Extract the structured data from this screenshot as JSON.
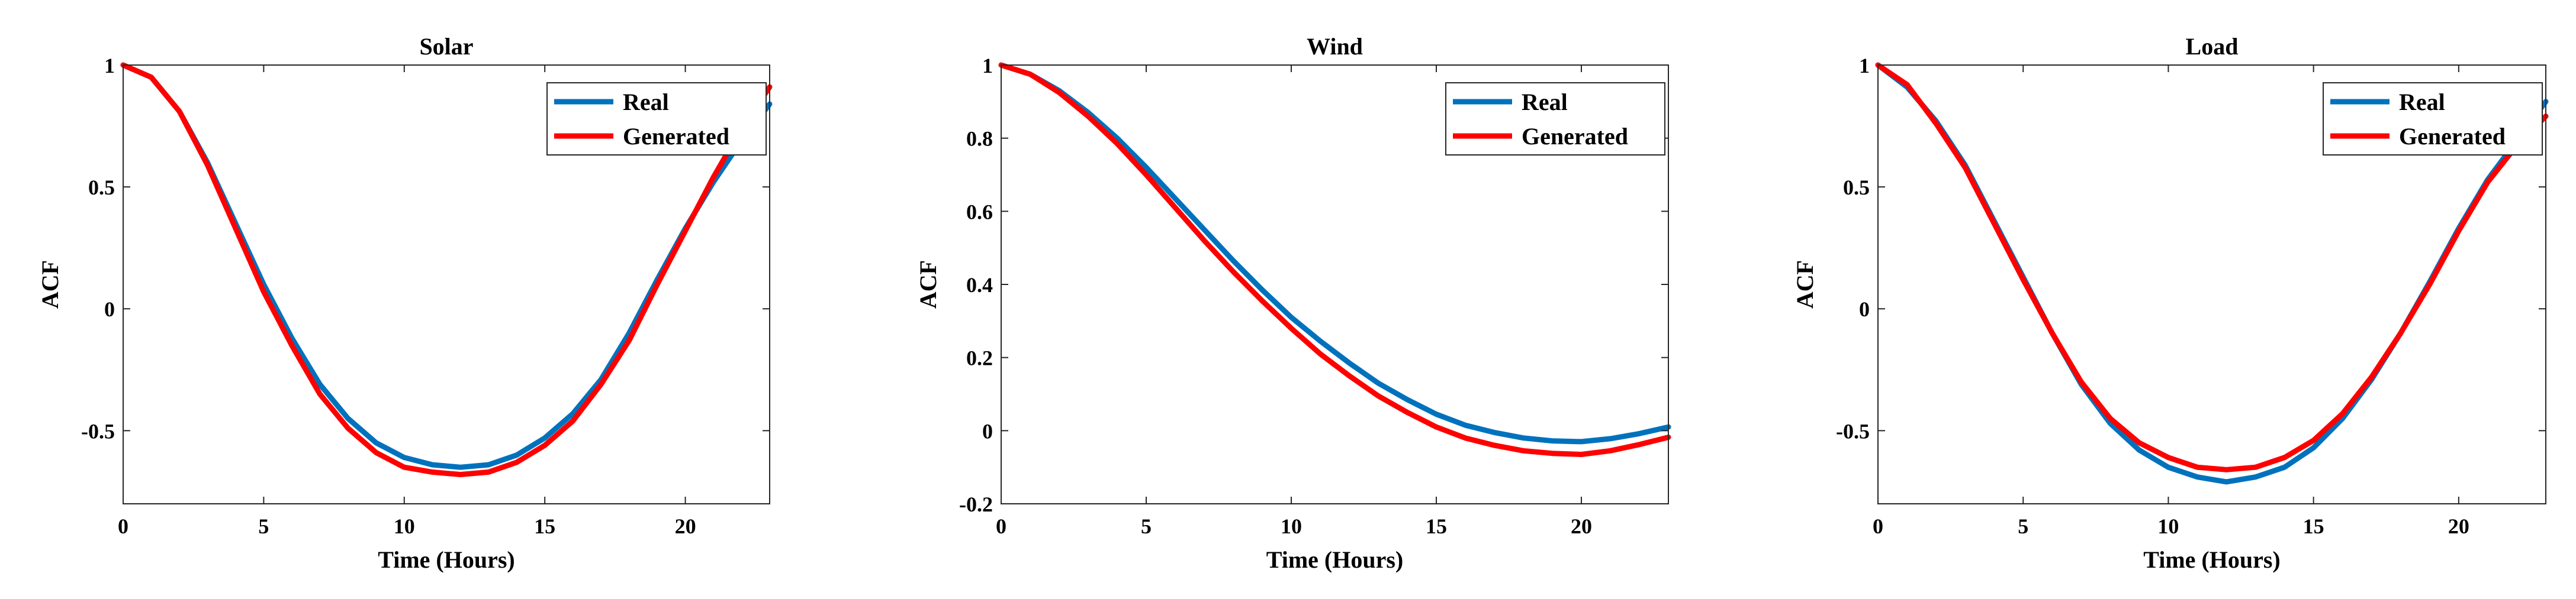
{
  "chart_data": [
    {
      "type": "line",
      "title": "Solar",
      "xlabel": "Time (Hours)",
      "ylabel": "ACF",
      "xlim": [
        0,
        23
      ],
      "ylim": [
        -0.8,
        1
      ],
      "xticks": [
        0,
        5,
        10,
        15,
        20
      ],
      "yticks": [
        -0.5,
        0,
        0.5,
        1
      ],
      "ytick_labels": [
        "-0.5",
        "0",
        "0.5",
        "1"
      ],
      "legend": "top-right",
      "x": [
        0,
        1,
        2,
        3,
        4,
        5,
        6,
        7,
        8,
        9,
        10,
        11,
        12,
        13,
        14,
        15,
        16,
        17,
        18,
        19,
        20,
        21,
        22,
        23
      ],
      "series": [
        {
          "name": "Real",
          "color": "#0072BD",
          "values": [
            1.0,
            0.95,
            0.81,
            0.6,
            0.35,
            0.1,
            -0.12,
            -0.31,
            -0.45,
            -0.55,
            -0.61,
            -0.64,
            -0.65,
            -0.64,
            -0.6,
            -0.53,
            -0.43,
            -0.29,
            -0.1,
            0.12,
            0.33,
            0.52,
            0.69,
            0.84
          ]
        },
        {
          "name": "Generated",
          "color": "#FF0000",
          "values": [
            1.0,
            0.95,
            0.81,
            0.59,
            0.33,
            0.07,
            -0.15,
            -0.35,
            -0.49,
            -0.59,
            -0.65,
            -0.67,
            -0.68,
            -0.67,
            -0.63,
            -0.56,
            -0.46,
            -0.31,
            -0.13,
            0.1,
            0.32,
            0.54,
            0.74,
            0.91
          ]
        }
      ]
    },
    {
      "type": "line",
      "title": "Wind",
      "xlabel": "Time (Hours)",
      "ylabel": "ACF",
      "xlim": [
        0,
        23
      ],
      "ylim": [
        -0.2,
        1
      ],
      "xticks": [
        0,
        5,
        10,
        15,
        20
      ],
      "yticks": [
        -0.2,
        0,
        0.2,
        0.4,
        0.6,
        0.8,
        1
      ],
      "ytick_labels": [
        "-0.2",
        "0",
        "0.2",
        "0.4",
        "0.6",
        "0.8",
        "1"
      ],
      "legend": "top-right",
      "x": [
        0,
        1,
        2,
        3,
        4,
        5,
        6,
        7,
        8,
        9,
        10,
        11,
        12,
        13,
        14,
        15,
        16,
        17,
        18,
        19,
        20,
        21,
        22,
        23
      ],
      "series": [
        {
          "name": "Real",
          "color": "#0072BD",
          "values": [
            1.0,
            0.975,
            0.93,
            0.87,
            0.8,
            0.72,
            0.635,
            0.55,
            0.465,
            0.385,
            0.31,
            0.245,
            0.185,
            0.13,
            0.085,
            0.045,
            0.015,
            -0.005,
            -0.02,
            -0.028,
            -0.03,
            -0.022,
            -0.008,
            0.01
          ]
        },
        {
          "name": "Generated",
          "color": "#FF0000",
          "values": [
            1.0,
            0.975,
            0.925,
            0.86,
            0.785,
            0.7,
            0.61,
            0.52,
            0.435,
            0.355,
            0.28,
            0.21,
            0.15,
            0.095,
            0.05,
            0.01,
            -0.02,
            -0.04,
            -0.055,
            -0.062,
            -0.065,
            -0.055,
            -0.038,
            -0.018
          ]
        }
      ]
    },
    {
      "type": "line",
      "title": "Load",
      "xlabel": "Time (Hours)",
      "ylabel": "ACF",
      "xlim": [
        0,
        23
      ],
      "ylim": [
        -0.8,
        1
      ],
      "xticks": [
        0,
        5,
        10,
        15,
        20
      ],
      "yticks": [
        -0.5,
        0,
        0.5,
        1
      ],
      "ytick_labels": [
        "-0.5",
        "0",
        "0.5",
        "1"
      ],
      "legend": "top-right",
      "x": [
        0,
        1,
        2,
        3,
        4,
        5,
        6,
        7,
        8,
        9,
        10,
        11,
        12,
        13,
        14,
        15,
        16,
        17,
        18,
        19,
        20,
        21,
        22,
        23
      ],
      "series": [
        {
          "name": "Real",
          "color": "#0072BD",
          "values": [
            1.0,
            0.91,
            0.77,
            0.59,
            0.36,
            0.13,
            -0.1,
            -0.31,
            -0.47,
            -0.58,
            -0.65,
            -0.69,
            -0.71,
            -0.69,
            -0.65,
            -0.57,
            -0.45,
            -0.29,
            -0.1,
            0.11,
            0.33,
            0.53,
            0.69,
            0.85
          ]
        },
        {
          "name": "Generated",
          "color": "#FF0000",
          "values": [
            1.0,
            0.92,
            0.76,
            0.58,
            0.35,
            0.12,
            -0.1,
            -0.3,
            -0.45,
            -0.55,
            -0.61,
            -0.65,
            -0.66,
            -0.65,
            -0.61,
            -0.54,
            -0.43,
            -0.28,
            -0.1,
            0.1,
            0.32,
            0.52,
            0.67,
            0.79
          ]
        }
      ]
    }
  ]
}
